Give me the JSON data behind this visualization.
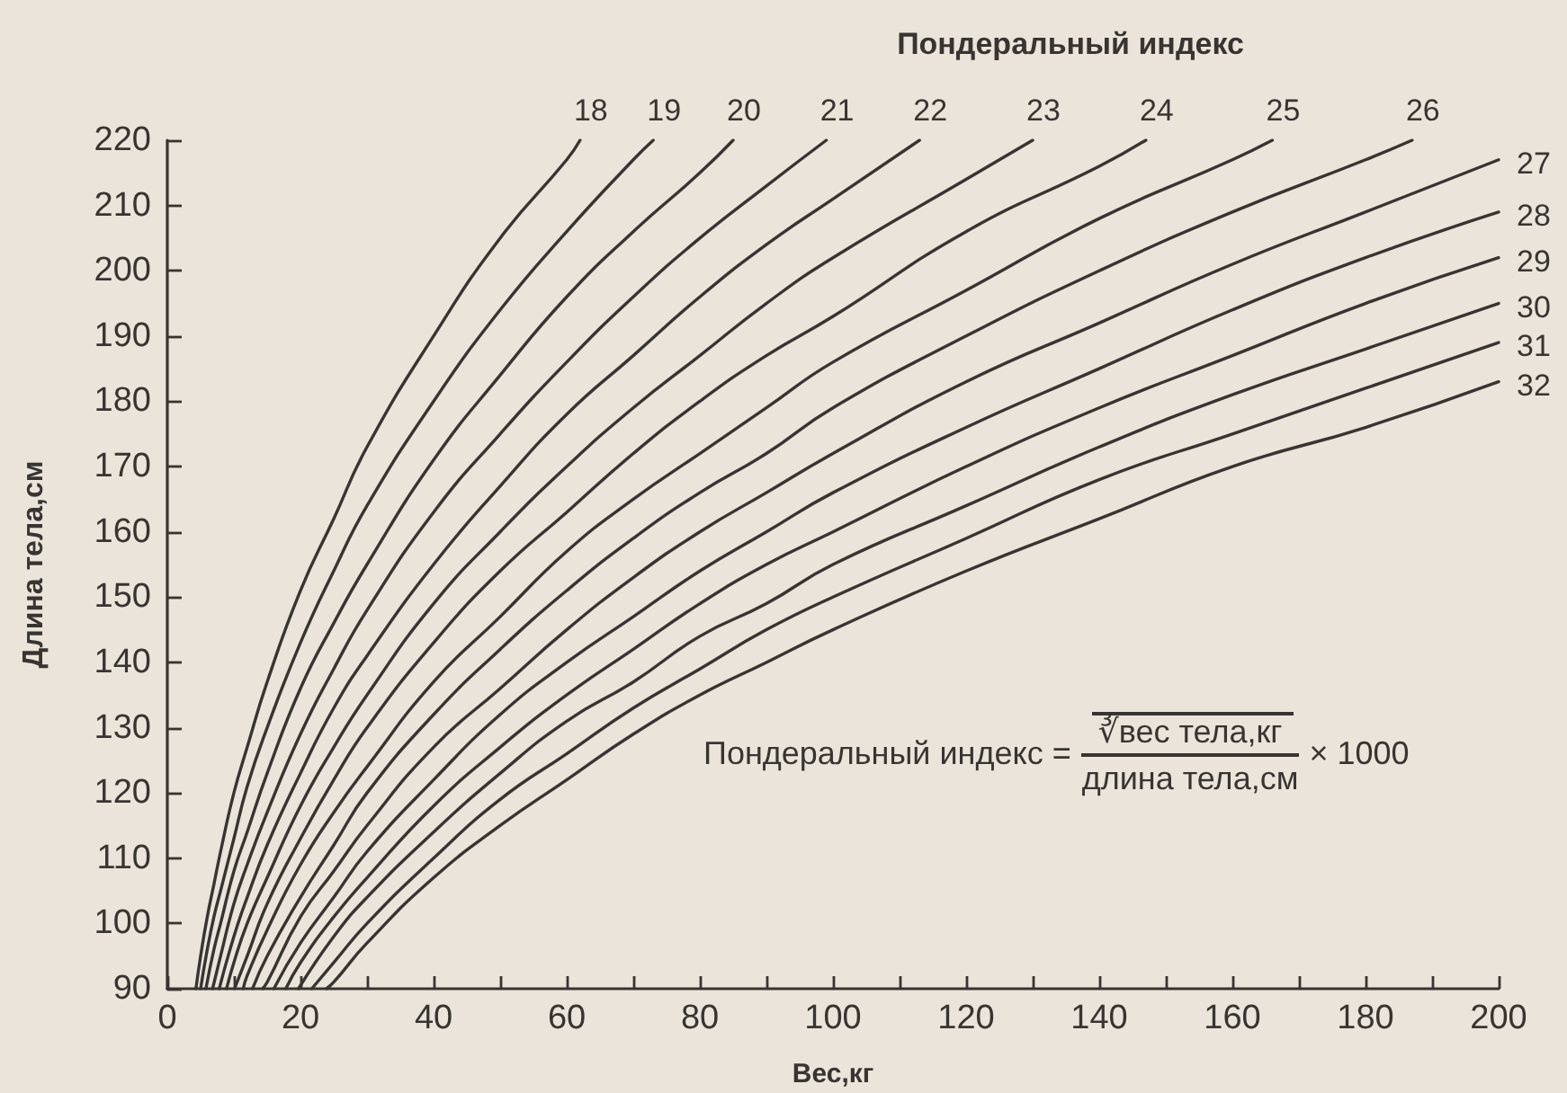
{
  "chart_data": {
    "type": "line",
    "title": "Пондеральный индекс",
    "xlabel": "Вес,кг",
    "ylabel": "Длина тела,см",
    "annotations": [
      "Пондеральный индекс =",
      "∛вес тела,кг",
      "длина тела,см",
      "× 1000"
    ],
    "xlim": [
      0,
      200
    ],
    "xticks": [
      0,
      {
        "value": 10,
        "label": null
      },
      20,
      {
        "value": 30,
        "label": null
      },
      40,
      {
        "value": 50,
        "label": null
      },
      60,
      {
        "value": 70,
        "label": null
      },
      80,
      {
        "value": 90,
        "label": null
      },
      100,
      {
        "value": 110,
        "label": null
      },
      120,
      {
        "value": 130,
        "label": null
      },
      140,
      {
        "value": 150,
        "label": null
      },
      160,
      {
        "value": 170,
        "label": null
      },
      180,
      {
        "value": 190,
        "label": null
      },
      200
    ],
    "ylim": [
      90,
      220
    ],
    "yticks": [
      90,
      100,
      110,
      120,
      130,
      140,
      150,
      160,
      170,
      180,
      190,
      200,
      210,
      220
    ],
    "grid": false,
    "legend": false,
    "marker": "none",
    "line_style": "solid",
    "series": [
      {
        "name": "18",
        "color": "#383431",
        "x": [
          4.3,
          5,
          6,
          7,
          8,
          10,
          12,
          15,
          20,
          25,
          30,
          40,
          50,
          60,
          62
        ],
        "values": [
          90,
          95,
          101,
          106,
          111,
          120,
          127,
          137,
          151,
          162,
          173,
          190,
          205,
          217,
          220
        ]
      },
      {
        "name": "19",
        "color": "#383431",
        "x": [
          5,
          6,
          7,
          8,
          10,
          12,
          15,
          20,
          25,
          30,
          40,
          50,
          60,
          70,
          73
        ],
        "values": [
          90,
          96,
          101,
          105,
          113,
          121,
          130,
          143,
          154,
          164,
          180,
          194,
          206,
          217,
          220
        ]
      },
      {
        "name": "20",
        "color": "#383431",
        "x": [
          5.8,
          7,
          8,
          10,
          12,
          15,
          20,
          25,
          30,
          40,
          50,
          60,
          70,
          80,
          85
        ],
        "values": [
          90,
          96,
          100,
          108,
          114,
          123,
          136,
          146,
          155,
          171,
          184,
          196,
          206,
          215,
          220
        ]
      },
      {
        "name": "21",
        "color": "#383431",
        "x": [
          6.8,
          8,
          10,
          12,
          15,
          20,
          25,
          30,
          40,
          50,
          60,
          70,
          80,
          90,
          99
        ],
        "values": [
          90,
          95,
          103,
          109,
          117,
          129,
          139,
          148,
          163,
          175,
          186,
          196,
          205,
          213,
          220
        ]
      },
      {
        "name": "22",
        "color": "#383431",
        "x": [
          7.8,
          10,
          12,
          15,
          20,
          25,
          30,
          40,
          50,
          60,
          70,
          80,
          90,
          100,
          113
        ],
        "values": [
          90,
          98,
          104,
          112,
          123,
          133,
          141,
          155,
          167,
          178,
          187,
          196,
          204,
          211,
          220
        ]
      },
      {
        "name": "23",
        "color": "#383431",
        "x": [
          8.9,
          10,
          12,
          15,
          20,
          25,
          30,
          40,
          50,
          60,
          70,
          80,
          90,
          100,
          120,
          130
        ],
        "values": [
          90,
          94,
          100,
          107,
          118,
          127,
          135,
          149,
          160,
          170,
          179,
          187,
          195,
          202,
          214,
          220
        ]
      },
      {
        "name": "24",
        "color": "#383431",
        "x": [
          10.1,
          12,
          15,
          20,
          25,
          30,
          40,
          50,
          60,
          70,
          80,
          90,
          100,
          120,
          140,
          147
        ],
        "values": [
          90,
          95,
          103,
          113,
          122,
          130,
          143,
          154,
          163,
          172,
          180,
          187,
          193,
          206,
          216,
          220
        ]
      },
      {
        "name": "25",
        "color": "#383431",
        "x": [
          11.4,
          12,
          15,
          20,
          25,
          30,
          40,
          50,
          60,
          70,
          80,
          90,
          100,
          120,
          140,
          160,
          166
        ],
        "values": [
          90,
          92,
          99,
          109,
          117,
          124,
          137,
          147,
          157,
          165,
          172,
          179,
          186,
          197,
          208,
          217,
          220
        ]
      },
      {
        "name": "26",
        "color": "#383431",
        "x": [
          12.8,
          15,
          20,
          25,
          30,
          40,
          50,
          60,
          70,
          80,
          90,
          100,
          120,
          140,
          160,
          180,
          187
        ],
        "values": [
          90,
          95,
          104,
          112,
          120,
          132,
          142,
          151,
          159,
          166,
          172,
          179,
          190,
          200,
          209,
          217,
          220
        ]
      },
      {
        "name": "27",
        "color": "#383431",
        "x": [
          14.3,
          15,
          20,
          25,
          30,
          40,
          50,
          60,
          70,
          80,
          90,
          100,
          120,
          140,
          160,
          180,
          200
        ],
        "values": [
          90,
          91,
          101,
          108,
          115,
          127,
          136,
          145,
          153,
          160,
          166,
          172,
          183,
          192,
          201,
          209,
          217
        ]
      },
      {
        "name": "28",
        "color": "#383431",
        "x": [
          16,
          20,
          25,
          30,
          40,
          50,
          60,
          70,
          80,
          90,
          100,
          120,
          140,
          160,
          180,
          200
        ],
        "values": [
          90,
          97,
          104,
          111,
          122,
          132,
          140,
          147,
          154,
          160,
          166,
          176,
          185,
          194,
          202,
          209
        ]
      },
      {
        "name": "29",
        "color": "#383431",
        "x": [
          17.8,
          20,
          25,
          30,
          40,
          50,
          60,
          70,
          80,
          90,
          100,
          120,
          140,
          160,
          180,
          200
        ],
        "values": [
          90,
          94,
          101,
          107,
          118,
          127,
          135,
          142,
          149,
          155,
          160,
          170,
          179,
          187,
          195,
          202
        ]
      },
      {
        "name": "30",
        "color": "#383431",
        "x": [
          19.7,
          25,
          30,
          40,
          50,
          60,
          70,
          80,
          90,
          100,
          120,
          140,
          160,
          180,
          200
        ],
        "values": [
          90,
          98,
          104,
          114,
          123,
          131,
          137,
          144,
          149,
          155,
          164,
          173,
          181,
          188,
          195
        ]
      },
      {
        "name": "31",
        "color": "#383431",
        "x": [
          21.7,
          25,
          30,
          40,
          50,
          60,
          70,
          80,
          90,
          100,
          120,
          140,
          160,
          180,
          200
        ],
        "values": [
          90,
          94,
          100,
          110,
          119,
          126,
          133,
          139,
          145,
          150,
          159,
          168,
          175,
          182,
          189
        ]
      },
      {
        "name": "32",
        "color": "#383431",
        "x": [
          23.9,
          25,
          30,
          40,
          50,
          60,
          70,
          80,
          90,
          100,
          120,
          140,
          160,
          180,
          200
        ],
        "values": [
          90,
          91,
          97,
          107,
          115,
          122,
          129,
          135,
          140,
          145,
          154,
          162,
          170,
          176,
          183
        ]
      }
    ]
  }
}
